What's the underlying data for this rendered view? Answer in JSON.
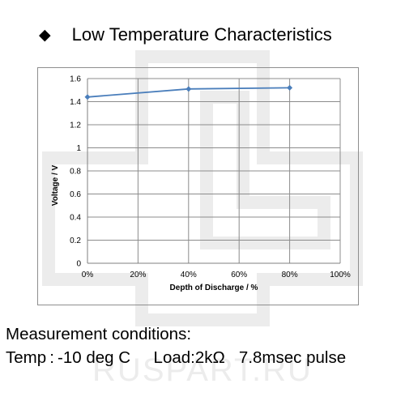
{
  "heading": {
    "bullet_icon": "diamond-bullet",
    "title": "Low Temperature Characteristics"
  },
  "watermark": {
    "text": "RUSPART.RU",
    "color": "#e6e6e6"
  },
  "chart_data": {
    "type": "line",
    "title": "",
    "xlabel": "Depth of Discharge / %",
    "ylabel": "Voltage / V",
    "x_ticks": [
      "0%",
      "20%",
      "40%",
      "60%",
      "80%",
      "100%"
    ],
    "y_ticks": [
      "0",
      "0.2",
      "0.4",
      "0.6",
      "0.8",
      "1",
      "1.2",
      "1.4",
      "1.6"
    ],
    "xlim": [
      0,
      100
    ],
    "ylim": [
      0,
      1.6
    ],
    "grid": true,
    "legend": "none",
    "series": [
      {
        "x": [
          0,
          40,
          80
        ],
        "y": [
          1.44,
          1.51,
          1.52
        ],
        "color": "#4a7ebb"
      }
    ]
  },
  "conditions": {
    "heading": "Measurement conditions:",
    "temp": "Temp : -10 deg C",
    "load": "Load:2kΩ",
    "pulse": "7.8msec pulse"
  }
}
